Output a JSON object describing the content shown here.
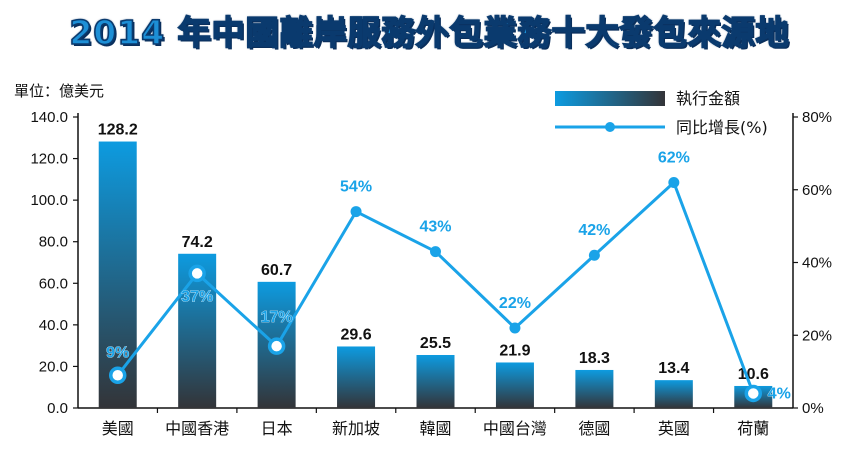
{
  "title": "2014 年中國離岸服務外包業務十大發包來源地",
  "unit_label": "單位：億美元",
  "colors": {
    "title": "#1d8fd6",
    "bar_top": "#0d9be0",
    "bar_bottom": "#333438",
    "line": "#1aa3e8",
    "line_label": "#1aa3e8",
    "bar_label": "#111111",
    "axis": "#111111"
  },
  "chart_data": {
    "type": "bar",
    "title": "2014 年中國離岸服務外包業務十大發包來源地",
    "categories": [
      "美國",
      "中國香港",
      "日本",
      "新加坡",
      "韓國",
      "中國台灣",
      "德國",
      "英國",
      "荷蘭"
    ],
    "series": [
      {
        "name": "執行金額",
        "type": "bar",
        "axis": "left",
        "values": [
          128.2,
          74.2,
          60.7,
          29.6,
          25.5,
          21.9,
          18.3,
          13.4,
          10.6
        ],
        "labels": [
          "128.2",
          "74.2",
          "60.7",
          "29.6",
          "25.5",
          "21.9",
          "18.3",
          "13.4",
          "10.6"
        ]
      },
      {
        "name": "同比增長(%)",
        "type": "line",
        "axis": "right",
        "values": [
          9,
          37,
          17,
          54,
          43,
          22,
          42,
          62,
          4
        ],
        "labels": [
          "9%",
          "37%",
          "17%",
          "54%",
          "43%",
          "22%",
          "42%",
          "62%",
          "4%"
        ]
      }
    ],
    "ylim_left": [
      0,
      140
    ],
    "yticks_left": [
      "0.0",
      "20.0",
      "40.0",
      "60.0",
      "80.0",
      "100.0",
      "120.0",
      "140.0"
    ],
    "ylim_right": [
      0,
      80
    ],
    "yticks_right": [
      "0%",
      "20%",
      "40%",
      "60%",
      "80%"
    ],
    "legend": {
      "position": "top-right",
      "entries": [
        "執行金額",
        "同比增長(%)"
      ]
    }
  }
}
